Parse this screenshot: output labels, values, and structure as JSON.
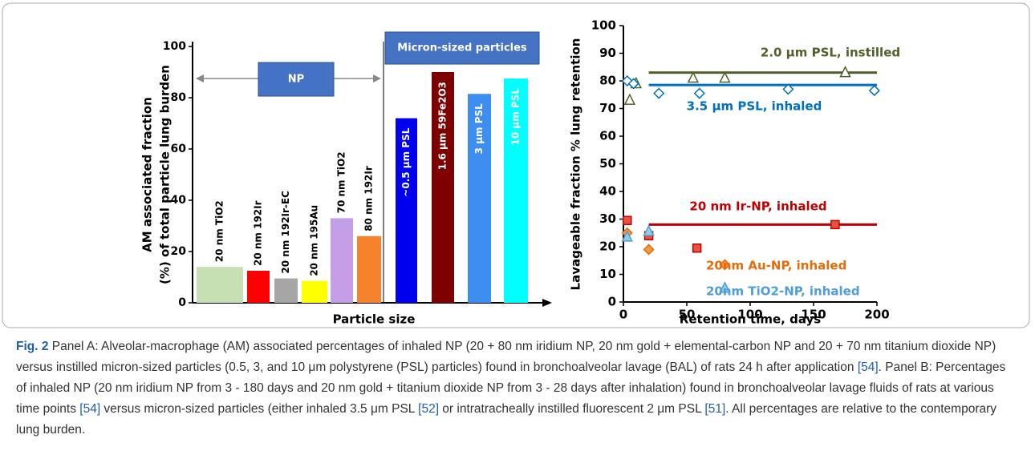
{
  "chart_data": [
    {
      "type": "bar",
      "y_label": [
        "AM associated fraction",
        "(%) of total particle lung burden"
      ],
      "x_label": "Particle size",
      "annotations": [
        "NP",
        "Micron-sized particles"
      ],
      "categories": [
        "20 nm TiO2",
        "20 nm 192Ir",
        "20 nm 192Ir-EC",
        "20 nm 195Au",
        "70 nm TiO2",
        "80 nm 192Ir",
        "~0.5 µm PSL",
        "1.6 µm 59Fe2O3",
        "3 µm PSL",
        "10 µm PSL"
      ],
      "values": [
        14,
        12.5,
        9.5,
        8.5,
        33,
        26,
        72,
        90,
        81.5,
        87.5
      ],
      "colors": [
        "#c6e0b4",
        "#ff0000",
        "#a6a6a6",
        "#ffff00",
        "#c59ee8",
        "#f7822c",
        "#0000ee",
        "#7f0000",
        "#3d8ef0",
        "#00ffff"
      ],
      "label_inside": [
        false,
        false,
        false,
        false,
        false,
        false,
        true,
        true,
        true,
        true
      ],
      "ylim": [
        0,
        100
      ],
      "yticks": [
        0,
        20,
        40,
        60,
        80,
        100
      ]
    },
    {
      "type": "scatter",
      "y_label": "Lavageable fraction % lung retention",
      "x_label": "Retention time, days",
      "xlim": [
        0,
        200
      ],
      "xticks": [
        0,
        50,
        100,
        150,
        200
      ],
      "ylim": [
        0,
        100
      ],
      "yticks": [
        0,
        10,
        20,
        30,
        40,
        50,
        60,
        70,
        80,
        90,
        100
      ],
      "series": [
        {
          "name": "2.0 µm PSL, instilled",
          "color": "#4f6228",
          "marker": "triangle",
          "filled": false,
          "x": [
            5,
            10,
            55,
            80,
            175
          ],
          "values": [
            73,
            79,
            81,
            81,
            83
          ],
          "fit": {
            "x": [
              20,
              200
            ],
            "value": 83
          }
        },
        {
          "name": "3.5 µm PSL, inhaled",
          "color": "#0070c0",
          "marker": "diamond",
          "filled": false,
          "x": [
            3,
            8,
            28,
            60,
            130,
            198
          ],
          "values": [
            80,
            79,
            75.5,
            75.5,
            77,
            76.5
          ],
          "fit": {
            "x": [
              20,
              200
            ],
            "value": 78.5
          }
        },
        {
          "name": "20 nm Ir-NP, inhaled",
          "color": "#c00000",
          "marker": "square",
          "filled": true,
          "fill": "#e8523f",
          "x": [
            3,
            20,
            58,
            167
          ],
          "values": [
            29.5,
            24,
            19.5,
            28
          ],
          "fit": {
            "x": [
              20,
              200
            ],
            "value": 28
          }
        },
        {
          "name": "20nm Au-NP, inhaled",
          "color": "#e46c0a",
          "marker": "diamond",
          "filled": true,
          "fill": "#f79646",
          "x": [
            3,
            20,
            80
          ],
          "values": [
            25,
            19,
            13.5
          ]
        },
        {
          "name": "20nm TiO2-NP, inhaled",
          "color": "#4f9ed8",
          "marker": "triangle",
          "filled": true,
          "fill": "#93cddd",
          "x": [
            3,
            20,
            80
          ],
          "values": [
            23.5,
            25.5,
            5
          ]
        }
      ]
    }
  ],
  "caption": {
    "label": "Fig. 2",
    "parts": [
      "Panel A: Alveolar-macrophage (AM) associated percentages of inhaled NP (20 + 80 nm iridium NP, 20 nm gold + elemental-carbon NP and 20 + 70 nm titanium dioxide NP) versus instilled micron-sized particles (0.5, 3, and 10 μm polystyrene (PSL) particles) found in bronchoalveolar lavage (BAL) of rats 24 h after application ",
      "[54]",
      ". Panel B: Percentages of inhaled NP (20 nm iridium NP from 3 - 180 days and 20 nm gold + titanium dioxide NP from 3 - 28 days after inhalation) found in bronchoalveolar lavage fluids of rats at various time points ",
      "[54]",
      " versus micron-sized particles (either inhaled 3.5 μm PSL ",
      "[52]",
      " or intratracheally instilled fluorescent 2 μm PSL ",
      "[51]",
      ". All percentages are relative to the contemporary lung burden."
    ]
  }
}
